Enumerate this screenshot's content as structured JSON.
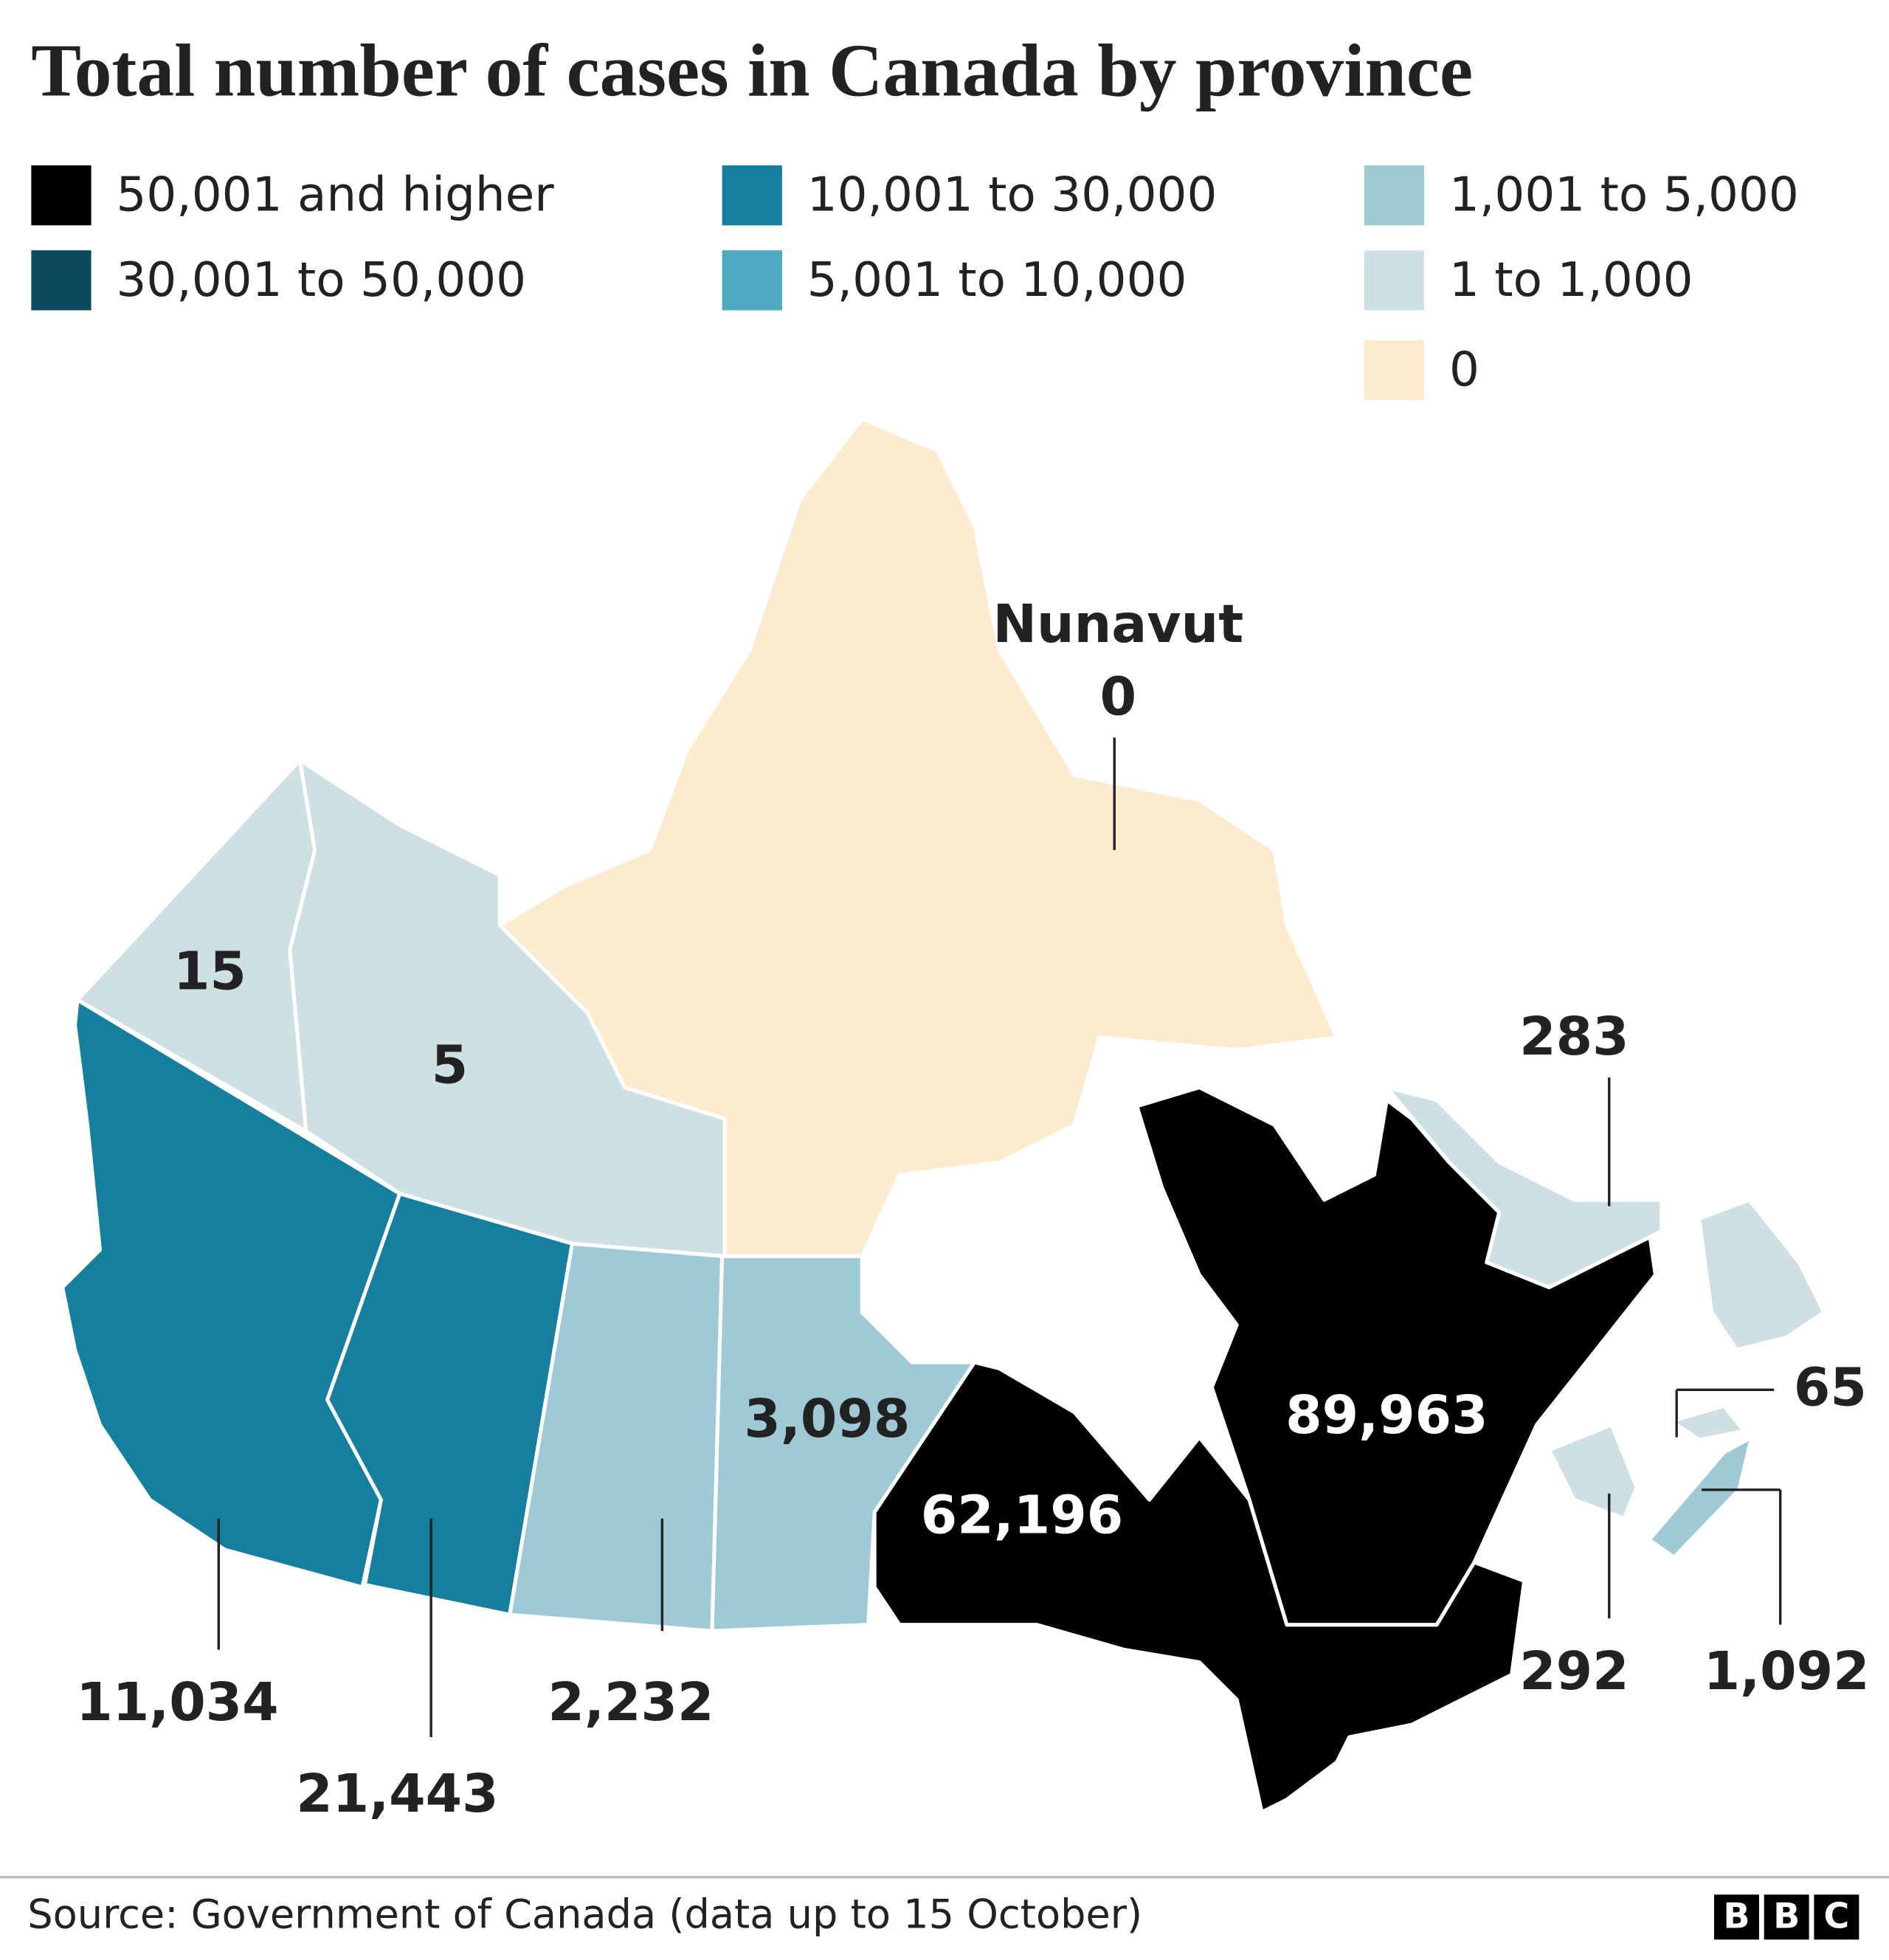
{
  "title": "Total number of cases in Canada by province",
  "legend": [
    {
      "label": "50,001 and higher",
      "color": "#000000"
    },
    {
      "label": "30,001 to 50,000",
      "color": "#0d4a5e"
    },
    {
      "label": "10,001 to 30,000",
      "color": "#167f9d"
    },
    {
      "label": "5,001 to 10,000",
      "color": "#4ea8c0"
    },
    {
      "label": "1,001 to 5,000",
      "color": "#a0c9d6"
    },
    {
      "label": "1 to 1,000",
      "color": "#cfe0e5"
    },
    {
      "label": "0",
      "color": "#fdebd0"
    }
  ],
  "regions": [
    {
      "name": "Nunavut",
      "value": 0,
      "value_label": "0",
      "color": "#fdebd0"
    },
    {
      "value": 15,
      "value_label": "15",
      "color": "#cfe0e5"
    },
    {
      "value": 5,
      "value_label": "5",
      "color": "#cfe0e5"
    },
    {
      "value": 11034,
      "value_label": "11,034",
      "color": "#167f9d"
    },
    {
      "value": 21443,
      "value_label": "21,443",
      "color": "#167f9d"
    },
    {
      "value": 2232,
      "value_label": "2,232",
      "color": "#a0c9d6"
    },
    {
      "value": 3098,
      "value_label": "3,098",
      "color": "#a0c9d6"
    },
    {
      "value": 62196,
      "value_label": "62,196",
      "color": "#000000"
    },
    {
      "value": 89963,
      "value_label": "89,963",
      "color": "#000000"
    },
    {
      "value": 283,
      "value_label": "283",
      "color": "#cfe0e5"
    },
    {
      "value": 292,
      "value_label": "292",
      "color": "#cfe0e5"
    },
    {
      "value": 65,
      "value_label": "65",
      "color": "#cfe0e5"
    },
    {
      "value": 1092,
      "value_label": "1,092",
      "color": "#a0c9d6"
    }
  ],
  "source": "Source: Government of Canada (data up to 15 October)",
  "logo": [
    "B",
    "B",
    "C"
  ]
}
